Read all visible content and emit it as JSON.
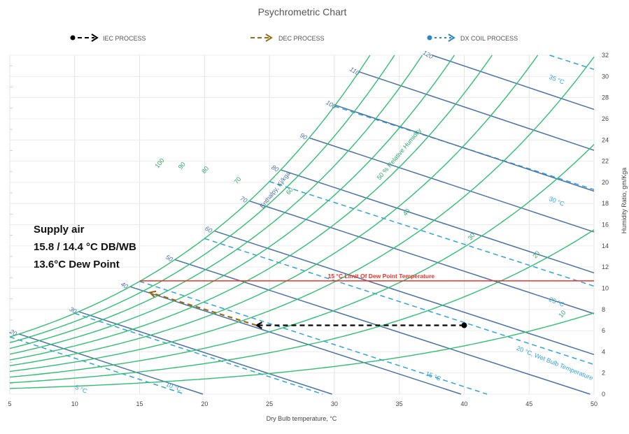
{
  "chart_data": {
    "type": "scatter",
    "title": "Psychrometric Chart",
    "xlabel": "Dry Bulb temperature, °C",
    "ylabel": "Humidity Ratio, gm/Kga",
    "xlim": [
      5,
      50
    ],
    "ylim": [
      0,
      32
    ],
    "x_ticks": [
      "5",
      "10",
      "15",
      "20",
      "25",
      "30",
      "35",
      "40",
      "45",
      "50"
    ],
    "y_ticks": [
      "0",
      "2",
      "4",
      "6",
      "8",
      "10",
      "12",
      "14",
      "16",
      "18",
      "20",
      "22",
      "24",
      "26",
      "28",
      "30",
      "32"
    ],
    "grid": "on",
    "legend_position": "top",
    "legend": [
      {
        "label": "IEC PROCESS",
        "color": "#000000",
        "marker": "circle"
      },
      {
        "label": "DEC PROCESS",
        "color": "#9a6b12",
        "marker": "none"
      },
      {
        "label": "DX COIL PROCESS",
        "color": "#2a86c6",
        "marker": "circle"
      }
    ],
    "processes": [
      {
        "name": "IEC PROCESS",
        "color": "#000000",
        "points": [
          [
            40,
            6.5
          ],
          [
            24,
            6.5
          ]
        ]
      },
      {
        "name": "DEC PROCESS",
        "color": "#9a6b12",
        "points": [
          [
            24,
            6.5
          ],
          [
            15.8,
            9.6
          ]
        ]
      }
    ],
    "dew_point_limit": {
      "value": 10.7,
      "label": "15 °C Limit Of Dew Point Temperature",
      "color": "#e8332a"
    },
    "rh_curves": {
      "color": "#2fbf71",
      "levels": [
        10,
        20,
        30,
        40,
        50,
        60,
        70,
        80,
        90,
        100
      ],
      "labels": [
        {
          "text": "100",
          "x": 16.4,
          "y": 21.3
        },
        {
          "text": "90",
          "x": 18.2,
          "y": 21.2
        },
        {
          "text": "80",
          "x": 20,
          "y": 20.8
        },
        {
          "text": "70",
          "x": 22.5,
          "y": 19.8
        },
        {
          "text": "60",
          "x": 26.5,
          "y": 18.8
        },
        {
          "text": "50 % Relative Humidity",
          "x": 33.5,
          "y": 20.2
        },
        {
          "text": "40",
          "x": 35.5,
          "y": 16.8
        },
        {
          "text": "30",
          "x": 40.5,
          "y": 14.5
        },
        {
          "text": "20",
          "x": 45.5,
          "y": 12.8
        },
        {
          "text": "10",
          "x": 47.5,
          "y": 7.2
        }
      ]
    },
    "enthalpy_lines": {
      "color": "#4a72a6",
      "axis_label": "Enthalpy, Kj/kga",
      "labels": [
        "20",
        "30",
        "40",
        "50",
        "60",
        "70",
        "80",
        "90",
        "100",
        "110",
        "120"
      ]
    },
    "wet_bulb_lines": {
      "color": "#2ea3dc",
      "labels": [
        "5 °C",
        "10 °C",
        "15 °C",
        "20 °C, Wet Bulb Temperature",
        "25 °C",
        "30 °C",
        "35 °C"
      ]
    },
    "annotation": {
      "lines": [
        "Supply air",
        "15.8 / 14.4 °C DB/WB",
        "13.6°C Dew Point"
      ]
    }
  }
}
